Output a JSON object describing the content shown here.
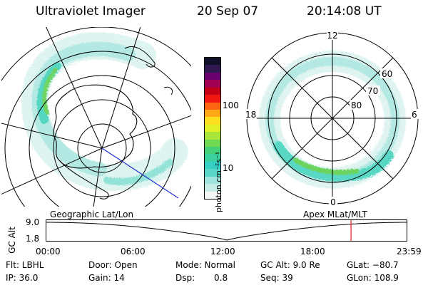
{
  "header": {
    "instrument": "Ultraviolet Imager",
    "date": "20 Sep 07",
    "time": "20:14:08 UT"
  },
  "colorbar": {
    "unit_label": "photon cm⁻²s⁻¹",
    "ticks": [
      "100",
      "10"
    ],
    "colors": [
      "#f4f7f7",
      "#c8ece8",
      "#9fe3dc",
      "#5ad6c8",
      "#35cfc7",
      "#3ad0a0",
      "#45d078",
      "#6fd850",
      "#a8e63c",
      "#e2f028",
      "#ffe020",
      "#ffa818",
      "#ff6410",
      "#f01810",
      "#c40018",
      "#a00050",
      "#6a0070",
      "#301850",
      "#101028"
    ]
  },
  "geo_panel": {
    "caption": "Geographic Lat/Lon"
  },
  "mag_panel": {
    "caption": "Apex MLat/MLT",
    "mlt_top": "12",
    "mlt_bottom": "0",
    "mlt_left": "18",
    "mlt_right": "6",
    "lat_labels": [
      "60",
      "70",
      "80"
    ]
  },
  "alt_plot": {
    "axis_title": "GC Alt",
    "y_ticks": [
      "9.0",
      "1.8"
    ],
    "x_ticks": [
      "00:00",
      "06:00",
      "12:00",
      "18:00",
      "23:59"
    ],
    "current_time_marker_hours": 20.24,
    "marker_color": "#e01818"
  },
  "status": {
    "filter": "Flt: LBHL",
    "ip": "IP: 36.0",
    "door": "Door: Open",
    "gain": "Gain: 14",
    "mode": "Mode: Normal",
    "dsp_label": "Dsp:",
    "dsp_value": "0.8",
    "gc_alt": "GC Alt: 9.0 Re",
    "seq": "Seq: 39",
    "glat": "GLat: −80.7",
    "glon": "GLon: 108.9"
  }
}
